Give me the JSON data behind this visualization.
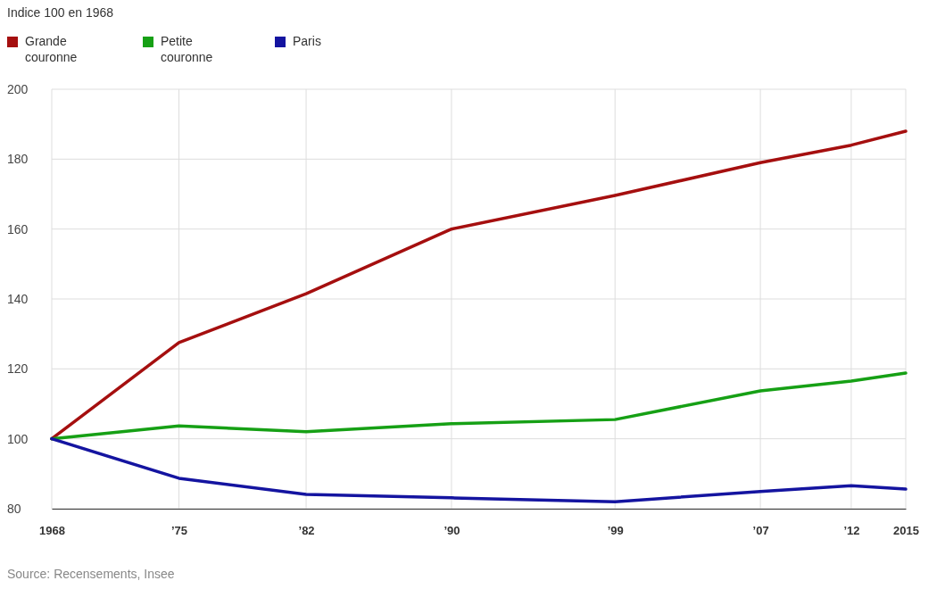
{
  "chart_data": {
    "type": "line",
    "title": "Indice 100 en 1968",
    "x": [
      1968,
      1975,
      1982,
      1990,
      1999,
      2007,
      2012,
      2015
    ],
    "series": [
      {
        "name": "Grande couronne",
        "color": "#a50f0f",
        "values": [
          100,
          127.5,
          141.5,
          160,
          169.6,
          179,
          184,
          188
        ]
      },
      {
        "name": "Petite couronne",
        "color": "#16a015",
        "values": [
          100,
          103.7,
          102,
          104.3,
          105.5,
          113.7,
          116.5,
          118.8
        ]
      },
      {
        "name": "Paris",
        "color": "#1414a0",
        "values": [
          100,
          88.7,
          84.1,
          83.1,
          82,
          84.9,
          86.6,
          85.6
        ]
      }
    ],
    "xlim": [
      1968,
      2015
    ],
    "xticks": [
      1968,
      {
        "value": 1975,
        "label": "’75"
      },
      {
        "value": 1982,
        "label": "’82"
      },
      {
        "value": 1990,
        "label": "’90"
      },
      {
        "value": 1999,
        "label": "’99"
      },
      {
        "value": 2007,
        "label": "’07"
      },
      {
        "value": 2012,
        "label": "’12"
      },
      2015
    ],
    "ylim": [
      80,
      200
    ],
    "yticks": [
      80,
      100,
      120,
      140,
      160,
      180,
      200
    ],
    "grid": true,
    "legend": "top left",
    "marker": "none",
    "line_style": "solid",
    "annotations": [
      "Source: Recensements, Insee"
    ]
  }
}
